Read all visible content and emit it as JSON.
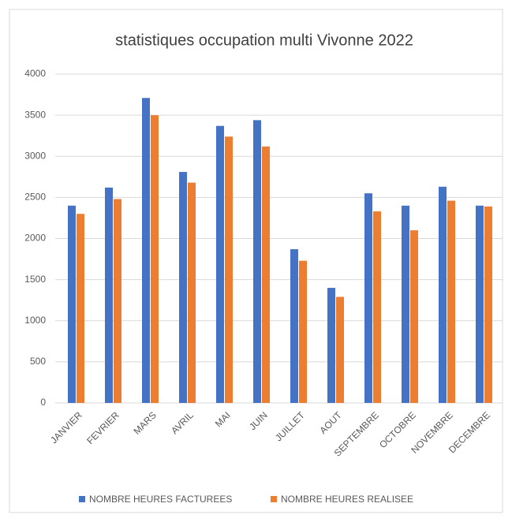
{
  "chart_data": {
    "type": "bar",
    "title": "statistiques occupation multi Vivonne 2022",
    "categories": [
      "JANVIER",
      "FEVRIER",
      "MARS",
      "AVRIL",
      "MAI",
      "JUIN",
      "JUILLET",
      "AOUT",
      "SEPTEMBRE",
      "OCTOBRE",
      "NOVEMBRE",
      "DECEMBRE"
    ],
    "series": [
      {
        "name": "NOMBRE HEURES FACTUREES",
        "color": "#4472c4",
        "values": [
          2400,
          2620,
          3710,
          2810,
          3370,
          3440,
          1870,
          1400,
          2550,
          2400,
          2630,
          2400
        ]
      },
      {
        "name": "NOMBRE HEURES REALISEE",
        "color": "#ed7d31",
        "values": [
          2300,
          2480,
          3500,
          2680,
          3240,
          3120,
          1730,
          1290,
          2330,
          2100,
          2460,
          2390
        ]
      }
    ],
    "ylim": [
      0,
      4000
    ],
    "yticks": [
      0,
      500,
      1000,
      1500,
      2000,
      2500,
      3000,
      3500,
      4000
    ],
    "grid": true,
    "legend": "bottom"
  }
}
